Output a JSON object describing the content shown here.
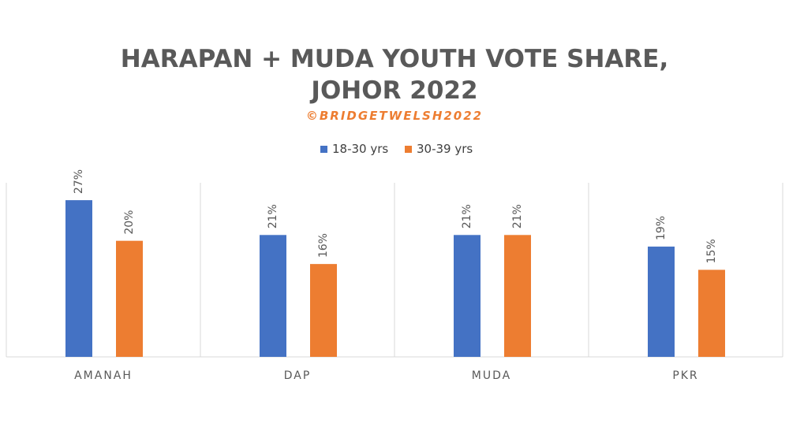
{
  "chart_data": {
    "type": "bar",
    "title_lines": [
      "HARAPAN + MUDA YOUTH VOTE SHARE,",
      "JOHOR 2022"
    ],
    "subtitle": "©BRIDGETWELSH2022",
    "categories": [
      "AMANAH",
      "DAP",
      "MUDA",
      "PKR"
    ],
    "series": [
      {
        "name": "18-30 yrs",
        "color": "#4472C4",
        "values": [
          27,
          21,
          21,
          19
        ],
        "labels": [
          "27%",
          "21%",
          "21%",
          "19%"
        ]
      },
      {
        "name": "30-39 yrs",
        "color": "#ED7D31",
        "values": [
          20,
          16,
          21,
          15
        ],
        "labels": [
          "20%",
          "16%",
          "21%",
          "15%"
        ]
      }
    ],
    "ylim": [
      0,
      30
    ],
    "legend_position": "top",
    "gridlines": "vertical category separators",
    "axis_color": "#D9D9D9"
  }
}
